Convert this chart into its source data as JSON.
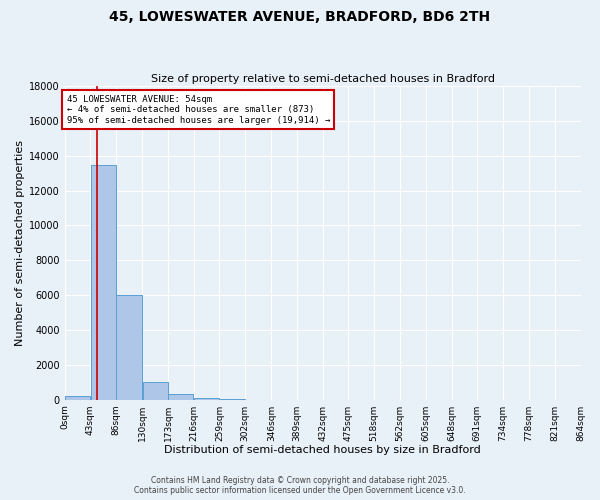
{
  "title1": "45, LOWESWATER AVENUE, BRADFORD, BD6 2TH",
  "title2": "Size of property relative to semi-detached houses in Bradford",
  "xlabel": "Distribution of semi-detached houses by size in Bradford",
  "ylabel": "Number of semi-detached properties",
  "bin_labels": [
    "0sqm",
    "43sqm",
    "86sqm",
    "130sqm",
    "173sqm",
    "216sqm",
    "259sqm",
    "302sqm",
    "346sqm",
    "389sqm",
    "432sqm",
    "475sqm",
    "518sqm",
    "562sqm",
    "605sqm",
    "648sqm",
    "691sqm",
    "734sqm",
    "778sqm",
    "821sqm",
    "864sqm"
  ],
  "bin_edges": [
    0,
    43,
    86,
    130,
    173,
    216,
    259,
    302,
    346,
    389,
    432,
    475,
    518,
    562,
    605,
    648,
    691,
    734,
    778,
    821,
    864
  ],
  "bar_heights": [
    200,
    13500,
    6000,
    1000,
    350,
    100,
    50,
    0,
    0,
    0,
    0,
    0,
    0,
    0,
    0,
    0,
    0,
    0,
    0,
    0
  ],
  "bar_color": "#aec6e8",
  "bar_edge_color": "#5a9fd4",
  "property_size": 54,
  "annotation_line1": "45 LOWESWATER AVENUE: 54sqm",
  "annotation_line2": "← 4% of semi-detached houses are smaller (873)",
  "annotation_line3": "95% of semi-detached houses are larger (19,914) →",
  "red_line_color": "#cc0000",
  "annotation_box_color": "#ffffff",
  "annotation_box_edge": "#cc0000",
  "ylim": [
    0,
    18000
  ],
  "yticks": [
    0,
    2000,
    4000,
    6000,
    8000,
    10000,
    12000,
    14000,
    16000,
    18000
  ],
  "ytick_labels": [
    "0",
    "2000",
    "4000",
    "6000",
    "8000",
    "10000",
    "12000",
    "14000",
    "16000",
    "18000"
  ],
  "background_color": "#e8f0f8",
  "grid_color": "#ffffff",
  "title1_fontsize": 10,
  "title2_fontsize": 8,
  "footer": "Contains HM Land Registry data © Crown copyright and database right 2025.\nContains public sector information licensed under the Open Government Licence v3.0."
}
